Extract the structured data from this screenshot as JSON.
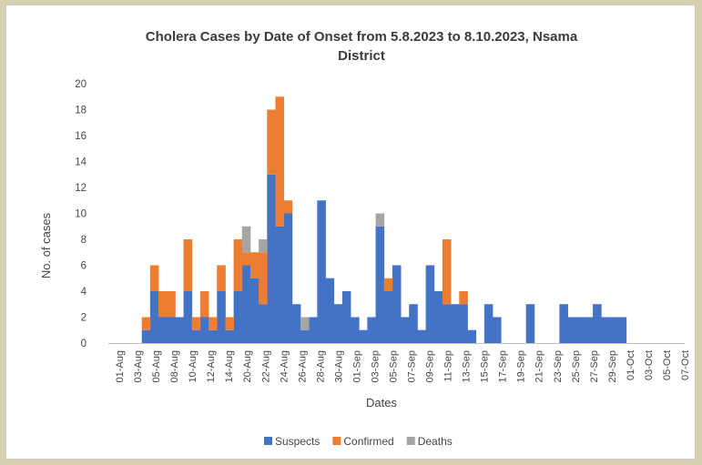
{
  "chart_data": {
    "type": "bar",
    "stacked": true,
    "title_line1": "Cholera Cases by Date of Onset from 5.8.2023 to 8.10.2023, Nsama",
    "title_line2": "District",
    "xlabel": "Dates",
    "ylabel": "No. of cases",
    "ylim": [
      0,
      20
    ],
    "yticks": [
      0,
      2,
      4,
      6,
      8,
      10,
      12,
      14,
      16,
      18,
      20
    ],
    "grid": false,
    "legend_position": "bottom",
    "x_start": "2023-08-01",
    "x_end": "2023-10-08",
    "xtick_labels": [
      "01-Aug",
      "03-Aug",
      "05-Aug",
      "08-Aug",
      "10-Aug",
      "12-Aug",
      "14-Aug",
      "20-Aug",
      "22-Aug",
      "24-Aug",
      "26-Aug",
      "28-Aug",
      "30-Aug",
      "01-Sep",
      "03-Sep",
      "05-Sep",
      "07-Sep",
      "09-Sep",
      "11-Sep",
      "13-Sep",
      "15-Sep",
      "17-Sep",
      "19-Sep",
      "21-Sep",
      "23-Sep",
      "25-Sep",
      "27-Sep",
      "29-Sep",
      "01-Oct",
      "03-Oct",
      "05-Oct",
      "07-Oct"
    ],
    "series": [
      {
        "name": "Suspects",
        "color": "#4472c4",
        "data": [
          [
            "2023-08-05",
            1
          ],
          [
            "2023-08-06",
            4
          ],
          [
            "2023-08-07",
            2
          ],
          [
            "2023-08-08",
            2
          ],
          [
            "2023-08-09",
            2
          ],
          [
            "2023-08-10",
            4
          ],
          [
            "2023-08-11",
            1
          ],
          [
            "2023-08-12",
            2
          ],
          [
            "2023-08-13",
            1
          ],
          [
            "2023-08-14",
            4
          ],
          [
            "2023-08-15",
            1
          ],
          [
            "2023-08-16",
            4
          ],
          [
            "2023-08-17",
            6
          ],
          [
            "2023-08-18",
            5
          ],
          [
            "2023-08-19",
            3
          ],
          [
            "2023-08-20",
            13
          ],
          [
            "2023-08-21",
            9
          ],
          [
            "2023-08-22",
            10
          ],
          [
            "2023-08-23",
            3
          ],
          [
            "2023-08-24",
            1
          ],
          [
            "2023-08-25",
            2
          ],
          [
            "2023-08-26",
            11
          ],
          [
            "2023-08-27",
            5
          ],
          [
            "2023-08-28",
            3
          ],
          [
            "2023-08-29",
            4
          ],
          [
            "2023-08-30",
            2
          ],
          [
            "2023-08-31",
            1
          ],
          [
            "2023-09-01",
            2
          ],
          [
            "2023-09-02",
            9
          ],
          [
            "2023-09-03",
            4
          ],
          [
            "2023-09-04",
            6
          ],
          [
            "2023-09-05",
            2
          ],
          [
            "2023-09-06",
            3
          ],
          [
            "2023-09-07",
            1
          ],
          [
            "2023-09-08",
            6
          ],
          [
            "2023-09-09",
            4
          ],
          [
            "2023-09-10",
            3
          ],
          [
            "2023-09-11",
            3
          ],
          [
            "2023-09-12",
            3
          ],
          [
            "2023-09-13",
            1
          ],
          [
            "2023-09-15",
            3
          ],
          [
            "2023-09-16",
            2
          ],
          [
            "2023-09-20",
            3
          ],
          [
            "2023-09-24",
            3
          ],
          [
            "2023-09-25",
            2
          ],
          [
            "2023-09-26",
            2
          ],
          [
            "2023-09-27",
            2
          ],
          [
            "2023-09-28",
            3
          ],
          [
            "2023-09-29",
            2
          ],
          [
            "2023-09-30",
            2
          ],
          [
            "2023-10-01",
            2
          ]
        ]
      },
      {
        "name": "Confirmed",
        "color": "#ed7d31",
        "data": [
          [
            "2023-08-05",
            1
          ],
          [
            "2023-08-06",
            2
          ],
          [
            "2023-08-07",
            2
          ],
          [
            "2023-08-08",
            2
          ],
          [
            "2023-08-10",
            4
          ],
          [
            "2023-08-11",
            1
          ],
          [
            "2023-08-12",
            2
          ],
          [
            "2023-08-13",
            1
          ],
          [
            "2023-08-14",
            2
          ],
          [
            "2023-08-15",
            1
          ],
          [
            "2023-08-16",
            4
          ],
          [
            "2023-08-17",
            1
          ],
          [
            "2023-08-18",
            2
          ],
          [
            "2023-08-19",
            4
          ],
          [
            "2023-08-20",
            5
          ],
          [
            "2023-08-21",
            10
          ],
          [
            "2023-08-22",
            1
          ],
          [
            "2023-09-03",
            1
          ],
          [
            "2023-09-10",
            5
          ],
          [
            "2023-09-12",
            1
          ]
        ]
      },
      {
        "name": "Deaths",
        "color": "#a5a5a5",
        "data": [
          [
            "2023-08-17",
            2
          ],
          [
            "2023-08-19",
            1
          ],
          [
            "2023-08-24",
            1
          ],
          [
            "2023-09-02",
            1
          ]
        ]
      }
    ]
  }
}
